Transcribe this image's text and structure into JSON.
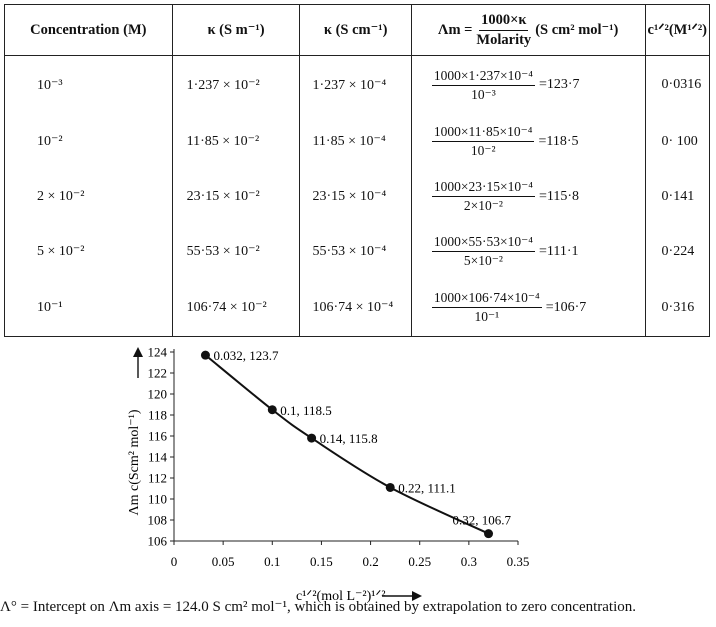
{
  "table": {
    "headers": {
      "concentration": "Concentration (M)",
      "kappa_sm": "κ (S m⁻¹)",
      "kappa_scm": "κ (S cm⁻¹)",
      "lambda_sym": "Λm =",
      "lambda_num": "1000×κ",
      "lambda_den": "Molarity",
      "lambda_unit": "(S cm² mol⁻¹)",
      "sqrt_c": "c¹ᐟ²(M¹ᐟ²)"
    },
    "rows": [
      {
        "conc": "10⁻³",
        "k_sm": "1·237 × 10⁻²",
        "k_scm": "1·237 × 10⁻⁴",
        "num": "1000×1·237×10⁻⁴",
        "den": "10⁻³",
        "result": "=123·7",
        "sqrt": "0·0316"
      },
      {
        "conc": "10⁻²",
        "k_sm": "11·85 × 10⁻²",
        "k_scm": "11·85 × 10⁻⁴",
        "num": "1000×11·85×10⁻⁴",
        "den": "10⁻²",
        "result": "=118·5",
        "sqrt": "0· 100"
      },
      {
        "conc": "2 × 10⁻²",
        "k_sm": "23·15 × 10⁻²",
        "k_scm": "23·15 × 10⁻⁴",
        "num": "1000×23·15×10⁻⁴",
        "den": "2×10⁻²",
        "result": "=115·8",
        "sqrt": "0·141"
      },
      {
        "conc": "5 × 10⁻²",
        "k_sm": "55·53 × 10⁻²",
        "k_scm": "55·53 × 10⁻⁴",
        "num": "1000×55·53×10⁻⁴",
        "den": "5×10⁻²",
        "result": "=111·1",
        "sqrt": "0·224"
      },
      {
        "conc": "10⁻¹",
        "k_sm": "106·74 × 10⁻²",
        "k_scm": "106·74 × 10⁻⁴",
        "num": "1000×106·74×10⁻⁴",
        "den": "10⁻¹",
        "result": "=106·7",
        "sqrt": "0·316"
      }
    ]
  },
  "chart_data": {
    "type": "line",
    "xlabel": "c¹ᐟ²(mol L⁻²)¹ᐟ²",
    "ylabel": "Λm c(Scm² mol⁻¹)",
    "xlim": [
      0,
      0.35
    ],
    "ylim": [
      106,
      124
    ],
    "xticks": [
      "0",
      "0.05",
      "0.1",
      "0.15",
      "0.2",
      "0.25",
      "0.3",
      "0.35"
    ],
    "yticks": [
      "106",
      "108",
      "110",
      "112",
      "114",
      "116",
      "118",
      "120",
      "122",
      "124"
    ],
    "points": [
      {
        "x": 0.032,
        "y": 123.7,
        "label": "0.032, 123.7"
      },
      {
        "x": 0.1,
        "y": 118.5,
        "label": "0.1, 118.5"
      },
      {
        "x": 0.14,
        "y": 115.8,
        "label": "0.14, 115.8"
      },
      {
        "x": 0.22,
        "y": 111.1,
        "label": "0.22, 111.1"
      },
      {
        "x": 0.32,
        "y": 106.7,
        "label": "0.32, 106.7"
      }
    ]
  },
  "caption": "Λ° = Intercept on Λm axis = 124.0 S cm² mol⁻¹, which is obtained by extrapolation to zero concentration."
}
